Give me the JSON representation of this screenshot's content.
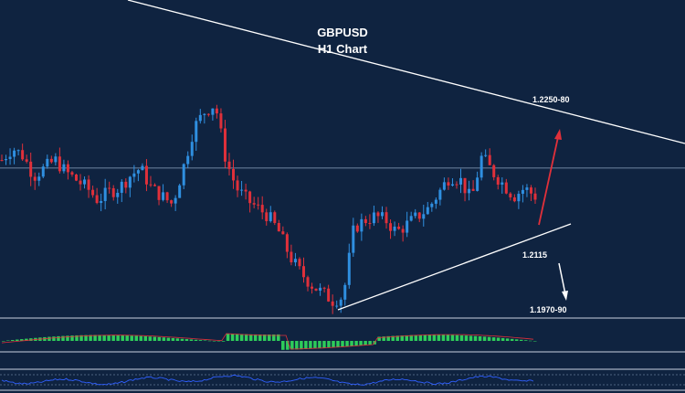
{
  "chart_data": {
    "type": "candlestick",
    "title": "GBPUSD",
    "subtitle": "H1 Chart",
    "annotations": {
      "upper_target": "1.2250-80",
      "support": "1.2115",
      "lower_target": "1.1970-90"
    },
    "colors": {
      "background": "#0f2340",
      "bull": "#2f8fe0",
      "bear": "#e0303a",
      "trendline": "#ffffff",
      "up_arrow": "#e0303a",
      "down_arrow": "#ffffff",
      "macd_hist": "#2ecc5a",
      "signal": "#e0303a",
      "rsi": "#3060ff"
    },
    "price_path": [
      1.216,
      1.2175,
      1.2165,
      1.214,
      1.215,
      1.216,
      1.2145,
      1.2135,
      1.2125,
      1.211,
      1.212,
      1.2125,
      1.214,
      1.215,
      1.2125,
      1.2115,
      1.2105,
      1.215,
      1.22,
      1.222,
      1.223,
      1.216,
      1.2125,
      1.211,
      1.21,
      1.209,
      1.207,
      1.204,
      1.202,
      1.2005,
      1.1995,
      1.1985,
      1.199,
      1.2075,
      1.2085,
      1.209,
      1.2085,
      1.207,
      1.208,
      1.209,
      1.21,
      1.212,
      1.214,
      1.2135,
      1.211,
      1.2165,
      1.2145,
      1.213,
      1.2115,
      1.2125,
      1.2115
    ]
  }
}
